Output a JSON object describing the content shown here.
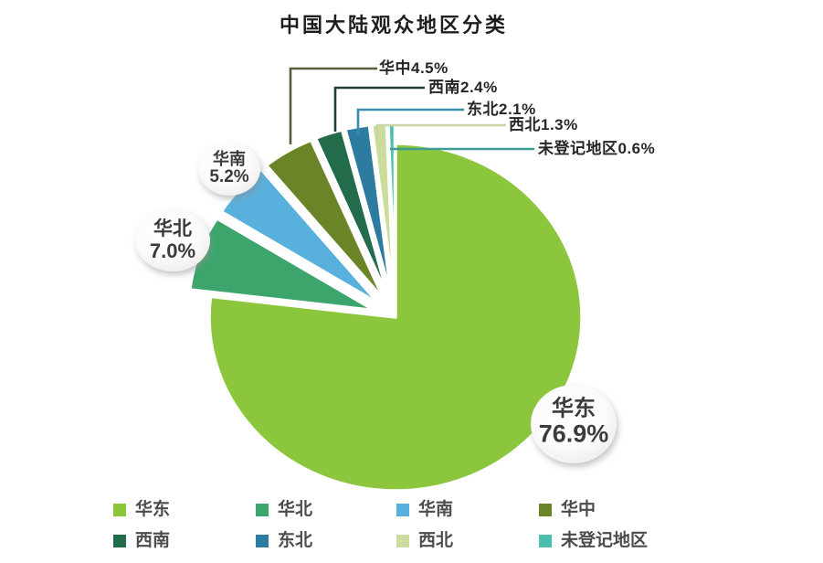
{
  "background": "#ffffff",
  "chart_data": {
    "type": "pie",
    "title": "中国大陆观众地区分类",
    "total": 100,
    "legend_position": "bottom",
    "series": [
      {
        "name": "华东",
        "value": 76.9,
        "pct": "76.9%",
        "color": "#8cc63c",
        "line_color": "#8cc63c",
        "label_style": "badge"
      },
      {
        "name": "华北",
        "value": 7.0,
        "pct": "7.0%",
        "color": "#3ba56b",
        "line_color": "#3ba56b",
        "label_style": "badge"
      },
      {
        "name": "华南",
        "value": 5.2,
        "pct": "5.2%",
        "color": "#58b0dc",
        "line_color": "#58b0dc",
        "label_style": "badge"
      },
      {
        "name": "华中",
        "value": 4.5,
        "pct": "4.5%",
        "color": "#6b8428",
        "line_color": "#55603a",
        "label_style": "callout"
      },
      {
        "name": "西南",
        "value": 2.4,
        "pct": "2.4%",
        "color": "#226b4b",
        "line_color": "#223f30",
        "label_style": "callout"
      },
      {
        "name": "东北",
        "value": 2.1,
        "pct": "2.1%",
        "color": "#2d7ba0",
        "line_color": "#3d8dac",
        "label_style": "callout"
      },
      {
        "name": "西北",
        "value": 1.3,
        "pct": "1.3%",
        "color": "#cbdc9d",
        "line_color": "#c9d6a2",
        "label_style": "callout"
      },
      {
        "name": "未登记地区",
        "value": 0.6,
        "pct": "0.6%",
        "color": "#4cc0ae",
        "line_color": "#3e9d92",
        "label_style": "callout"
      }
    ]
  }
}
